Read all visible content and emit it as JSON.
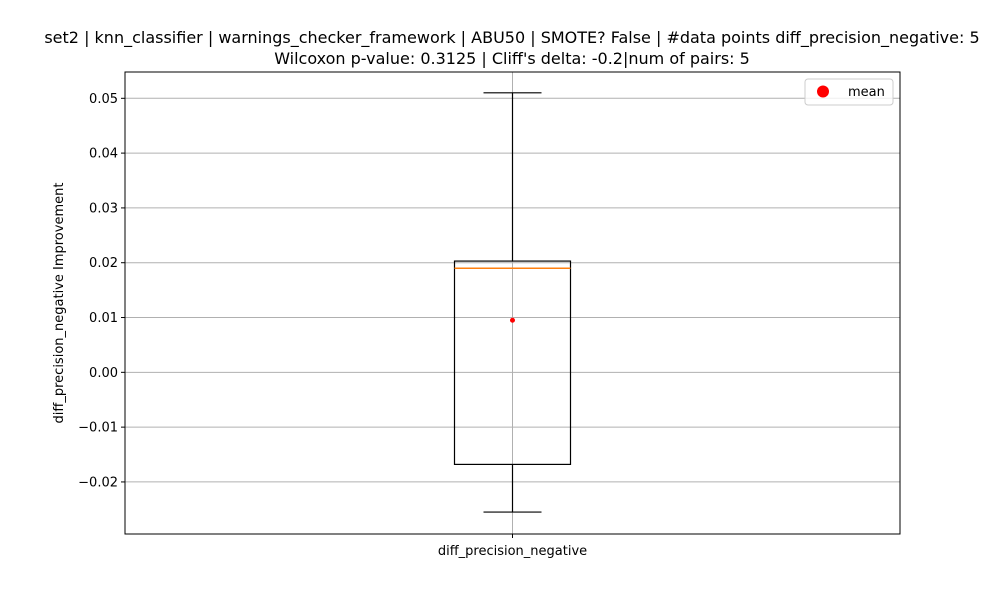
{
  "chart_data": {
    "type": "box",
    "title": "set2 | knn_classifier | warnings_checker_framework | ABU50 | SMOTE? False | #data points diff_precision_negative: 5",
    "subtitle": "Wilcoxon p-value: 0.3125 | Cliff's delta: -0.2|num of pairs: 5",
    "xlabel": "",
    "ylabel": "diff_precision_negative Improvement",
    "categories": [
      "diff_precision_negative"
    ],
    "ylim": [
      -0.0295,
      0.0548
    ],
    "yticks": [
      -0.02,
      -0.01,
      0.0,
      0.01,
      0.02,
      0.03,
      0.04,
      0.05
    ],
    "ytick_labels": [
      "−0.02",
      "−0.01",
      "0.00",
      "0.01",
      "0.02",
      "0.03",
      "0.04",
      "0.05"
    ],
    "grid": true,
    "legend": {
      "placement": "top-right",
      "entries": [
        {
          "label": "mean",
          "color": "#ff0000"
        }
      ]
    },
    "boxes": [
      {
        "whisker_low": -0.0255,
        "q1": -0.0168,
        "median": 0.019,
        "q3": 0.0203,
        "whisker_high": 0.051,
        "mean": 0.0095
      }
    ],
    "colors": {
      "median": "#ff7f0e",
      "mean": "#ff0000",
      "box": "#000000",
      "grid": "#b0b0b0"
    }
  }
}
